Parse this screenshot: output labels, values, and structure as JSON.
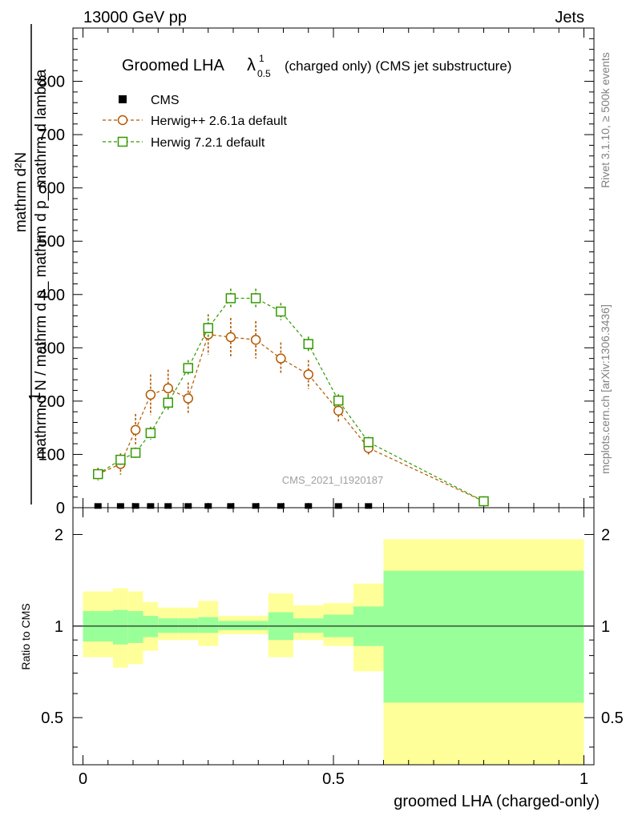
{
  "header": {
    "left": "13000 GeV pp",
    "right": "Jets"
  },
  "chart_data": {
    "type": "line",
    "title_main": "Groomed LHA",
    "title_lambda": "λ",
    "title_sup": "1",
    "title_sub": "0.5",
    "title_rest": "(charged only) (CMS jet substructure)",
    "ylabel_frac": "1",
    "ylabel_num": "mathrm d²N",
    "ylabel_den": "mathrm d N / mathrm d p_ mathrm d p_ mathrm d lambda",
    "xlabel": "groomed LHA (charged-only)",
    "ylabel_ratio": "Ratio to CMS",
    "watermark": "CMS_2021_I1920187",
    "side_right_top": "Rivet 3.1.10, ≥ 500k events",
    "side_right_bottom": "mcplots.cern.ch [arXiv:1306.3436]",
    "xlim": [
      -0.02,
      1.02
    ],
    "ylim": [
      0,
      900
    ],
    "ratio_ylim_log": [
      0.35,
      2.45
    ],
    "x_ticks": [
      "0",
      "0.5",
      "1"
    ],
    "y_ticks": [
      "0",
      "100",
      "200",
      "300",
      "400",
      "500",
      "600",
      "700",
      "800"
    ],
    "ratio_ticks": [
      "0.5",
      "1",
      "2"
    ],
    "legend": [
      {
        "name": "CMS",
        "marker": "filled-square",
        "color": "#000000"
      },
      {
        "name": "Herwig++ 2.6.1a default",
        "marker": "open-circle",
        "color": "#b35900"
      },
      {
        "name": "Herwig 7.2.1 default",
        "marker": "open-square",
        "color": "#339900"
      }
    ],
    "x": [
      0.03,
      0.075,
      0.105,
      0.135,
      0.17,
      0.21,
      0.25,
      0.295,
      0.345,
      0.395,
      0.45,
      0.51,
      0.57,
      0.8
    ],
    "series": [
      {
        "name": "CMS",
        "values": [
          1,
          1,
          1,
          1,
          1,
          1,
          1,
          1,
          1,
          1,
          1,
          1,
          1,
          null
        ]
      },
      {
        "name": "Herwig++ 2.6.1a default",
        "values": [
          63,
          82,
          146,
          212,
          224,
          205,
          325,
          320,
          315,
          280,
          250,
          182,
          112,
          12
        ],
        "errors": [
          12,
          20,
          30,
          38,
          35,
          30,
          38,
          36,
          35,
          30,
          27,
          22,
          15,
          4
        ]
      },
      {
        "name": "Herwig 7.2.1 default",
        "values": [
          63,
          90,
          103,
          140,
          197,
          262,
          337,
          393,
          393,
          368,
          307,
          201,
          123,
          12
        ],
        "errors": [
          8,
          10,
          10,
          12,
          14,
          15,
          18,
          18,
          18,
          16,
          14,
          12,
          10,
          3
        ]
      }
    ],
    "ratio_bands": {
      "edges": [
        0.0,
        0.06,
        0.09,
        0.12,
        0.15,
        0.19,
        0.23,
        0.27,
        0.32,
        0.37,
        0.42,
        0.48,
        0.54,
        0.6,
        1.0
      ],
      "inner_lo": [
        0.89,
        0.87,
        0.88,
        0.92,
        0.95,
        0.95,
        0.95,
        0.97,
        0.97,
        0.9,
        0.95,
        0.92,
        0.86,
        0.56
      ],
      "inner_hi": [
        1.12,
        1.13,
        1.12,
        1.08,
        1.06,
        1.06,
        1.07,
        1.04,
        1.04,
        1.11,
        1.06,
        1.09,
        1.16,
        1.52
      ],
      "outer_lo": [
        0.79,
        0.73,
        0.75,
        0.83,
        0.9,
        0.9,
        0.86,
        0.94,
        0.94,
        0.79,
        0.9,
        0.86,
        0.71,
        0.35
      ],
      "outer_hi": [
        1.3,
        1.33,
        1.3,
        1.2,
        1.15,
        1.15,
        1.21,
        1.08,
        1.08,
        1.28,
        1.17,
        1.19,
        1.38,
        1.93
      ]
    }
  }
}
